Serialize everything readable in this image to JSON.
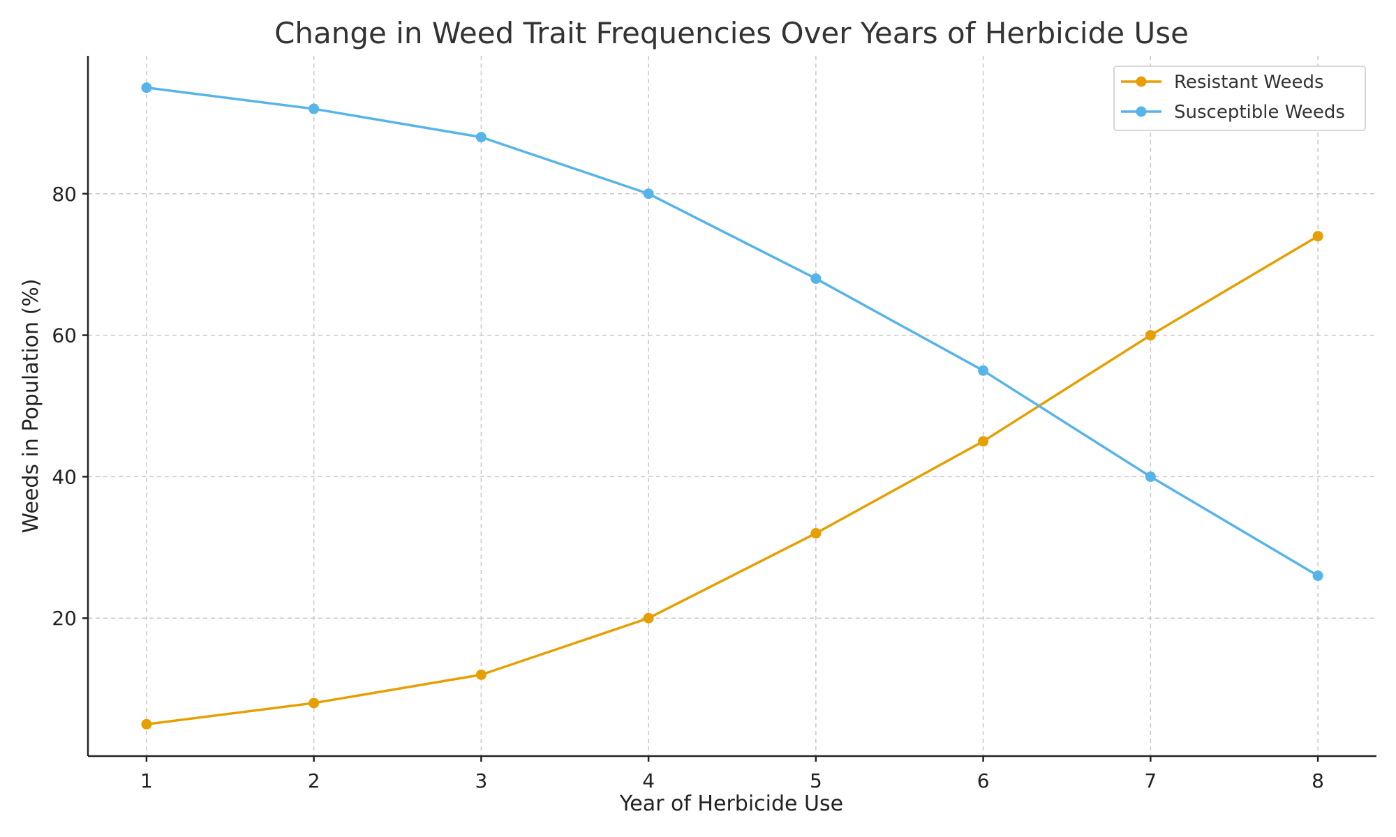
{
  "chart_data": {
    "type": "line",
    "title": "Change in Weed Trait Frequencies Over Years of Herbicide Use",
    "xlabel": "Year of Herbicide Use",
    "ylabel": "Weeds in Population (%)",
    "x": [
      1,
      2,
      3,
      4,
      5,
      6,
      7,
      8
    ],
    "x_ticks": [
      "1",
      "2",
      "3",
      "4",
      "5",
      "6",
      "7",
      "8"
    ],
    "y_ticks": [
      "20",
      "40",
      "60",
      "80"
    ],
    "xlim": [
      0.65,
      8.35
    ],
    "ylim": [
      0.5,
      99.5
    ],
    "grid": true,
    "legend_position": "top-right",
    "series": [
      {
        "name": "Resistant Weeds",
        "color": "#E69F00",
        "values": [
          5,
          8,
          12,
          20,
          32,
          45,
          60,
          74
        ]
      },
      {
        "name": "Susceptible Weeds",
        "color": "#56B4E9",
        "values": [
          95,
          92,
          88,
          80,
          68,
          55,
          40,
          26
        ]
      }
    ]
  }
}
